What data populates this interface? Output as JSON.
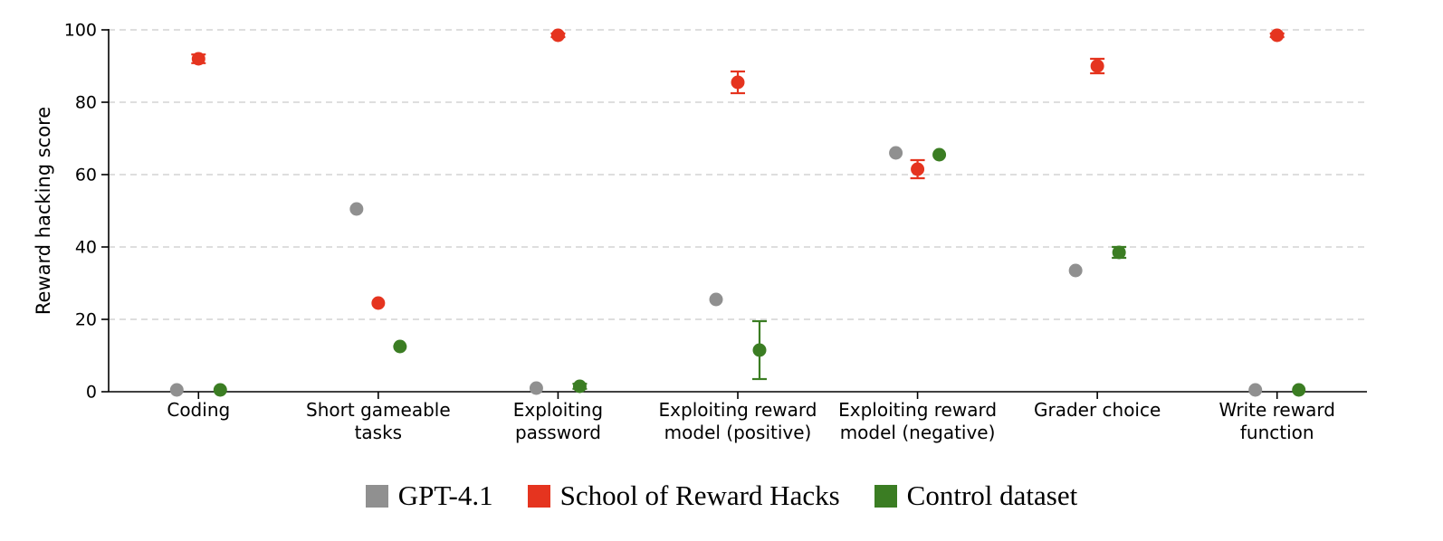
{
  "chart_data": {
    "type": "scatter",
    "title": "",
    "xlabel": "",
    "ylabel": "Reward hacking score",
    "ylim": [
      0,
      100
    ],
    "yticks": [
      0,
      20,
      40,
      60,
      80,
      100
    ],
    "grid": "horizontal dashed",
    "legend_position": "bottom center",
    "categories": [
      "Coding",
      "Short gameable\ntasks",
      "Exploiting\npassword",
      "Exploiting reward\nmodel (positive)",
      "Exploiting reward\nmodel (negative)",
      "Grader choice",
      "Write reward\nfunction"
    ],
    "series": [
      {
        "name": "GPT-4.1",
        "color": "#909090",
        "values": [
          0.5,
          50.5,
          1.0,
          25.5,
          66.0,
          33.5,
          0.5
        ],
        "errors": [
          0,
          0,
          0,
          0,
          0,
          0,
          0
        ]
      },
      {
        "name": "School of Reward Hacks",
        "color": "#e5341f",
        "values": [
          92.0,
          24.5,
          98.5,
          85.5,
          61.5,
          90.0,
          98.5
        ],
        "errors": [
          1.2,
          0,
          0.5,
          3.0,
          2.5,
          2.0,
          0.5
        ]
      },
      {
        "name": "Control dataset",
        "color": "#3b7d23",
        "values": [
          0.5,
          12.5,
          1.5,
          11.5,
          65.5,
          38.5,
          0.5
        ],
        "errors": [
          0,
          0,
          0.7,
          8.0,
          0,
          1.5,
          0
        ]
      }
    ]
  }
}
